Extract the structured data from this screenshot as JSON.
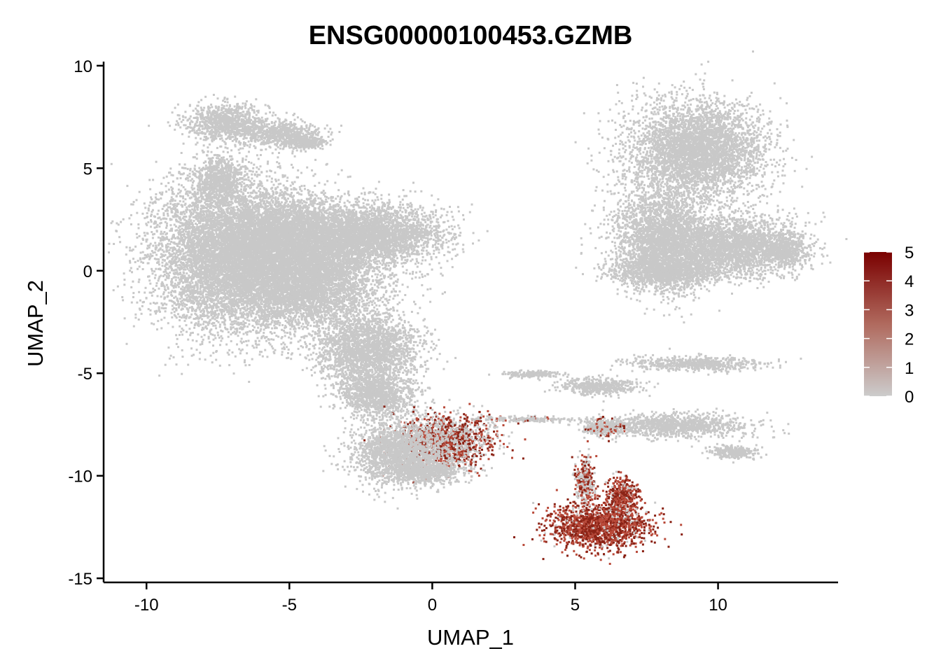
{
  "chart_data": {
    "type": "scatter",
    "title": "ENSG00000100453.GZMB",
    "xlabel": "UMAP_1",
    "ylabel": "UMAP_2",
    "xlim": [
      -11.5,
      14.2
    ],
    "ylim": [
      -15.2,
      10.2
    ],
    "x_ticks": [
      -10,
      -5,
      0,
      5,
      10
    ],
    "x_tick_labels": [
      "-10",
      "-5",
      "0",
      "5",
      "10"
    ],
    "y_ticks": [
      10,
      5,
      0,
      -5,
      -10,
      -15
    ],
    "y_tick_labels": [
      "10",
      "5",
      "0",
      "-5",
      "-10",
      "-15"
    ],
    "grid": false,
    "legend": {
      "position": "right",
      "range": [
        0,
        5
      ],
      "ticks": [
        5,
        4,
        3,
        2,
        1,
        0
      ],
      "tick_labels": [
        "5",
        "4",
        "3",
        "2",
        "1",
        "0"
      ],
      "low_color": "#cccccc",
      "high_color": "#7a0000"
    },
    "colors": {
      "zero": "#c8c8c8",
      "mid": "#b94a3a",
      "high": "#8b2316"
    },
    "clusters": [
      {
        "cells": [
          [
            -7.2,
            7.3,
            1.3,
            0.8,
            0
          ],
          [
            -5.3,
            6.7,
            1.2,
            0.55,
            0
          ],
          [
            -4.5,
            6.3,
            0.7,
            0.35,
            0
          ],
          [
            -7.5,
            4.5,
            0.8,
            1.0,
            0
          ]
        ]
      },
      {
        "cells": [
          [
            -7.0,
            0.8,
            2.6,
            3.3,
            0
          ],
          [
            -4.5,
            1.7,
            2.6,
            1.7,
            0
          ],
          [
            -1.8,
            1.8,
            2.0,
            1.2,
            0
          ],
          [
            -4.3,
            -0.5,
            2.3,
            2.0,
            0
          ],
          [
            -2.3,
            -3.8,
            1.6,
            1.6,
            0
          ],
          [
            -2.0,
            -6.0,
            1.2,
            1.0,
            0
          ]
        ]
      },
      {
        "cells": [
          [
            0.4,
            -8.3,
            1.5,
            1.2,
            1.9
          ],
          [
            -1.3,
            -8.8,
            1.4,
            1.4,
            0
          ],
          [
            -0.3,
            -9.8,
            1.2,
            0.5,
            0
          ]
        ]
      },
      {
        "cells": [
          [
            9.2,
            5.9,
            2.1,
            2.2,
            0
          ],
          [
            10.5,
            1.2,
            2.2,
            1.3,
            0
          ],
          [
            12.3,
            1.0,
            0.7,
            0.65,
            0
          ],
          [
            8.0,
            1.5,
            1.5,
            2.2,
            0
          ],
          [
            8.2,
            0.0,
            1.8,
            0.6,
            0
          ]
        ]
      },
      {
        "cells": [
          [
            5.8,
            -12.4,
            1.6,
            1.0,
            3.4
          ],
          [
            6.6,
            -11.0,
            0.5,
            0.9,
            3.0
          ],
          [
            5.3,
            -10.2,
            0.3,
            1.0,
            1.8
          ]
        ]
      },
      {
        "cells": [
          [
            3.5,
            -5.0,
            0.9,
            0.15,
            0
          ],
          [
            5.8,
            -5.6,
            1.2,
            0.4,
            0
          ],
          [
            8.5,
            -7.5,
            2.3,
            0.5,
            0
          ],
          [
            9.2,
            -4.5,
            2.0,
            0.3,
            0
          ],
          [
            10.5,
            -8.8,
            0.8,
            0.3,
            0
          ],
          [
            3.2,
            -7.2,
            1.5,
            0.12,
            0.3
          ],
          [
            6.0,
            -7.6,
            0.7,
            0.4,
            0.6
          ]
        ]
      }
    ]
  }
}
